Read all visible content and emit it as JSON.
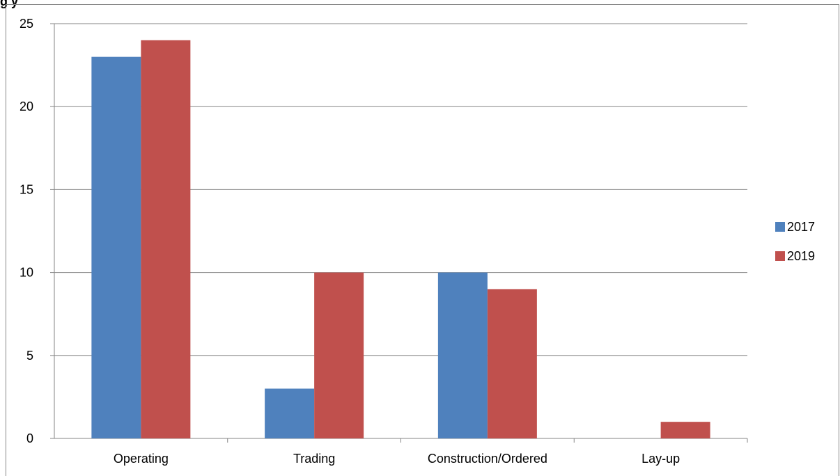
{
  "chart_data": {
    "type": "bar",
    "title": "",
    "title_partial": "g                    y",
    "xlabel": "",
    "ylabel": "",
    "categories": [
      "Operating",
      "Trading",
      "Construction/Ordered",
      "Lay-up"
    ],
    "series": [
      {
        "name": "2017",
        "values": [
          23,
          3,
          10,
          0
        ],
        "color": "#4F81BD"
      },
      {
        "name": "2019",
        "values": [
          24,
          10,
          9,
          1
        ],
        "color": "#C0504D"
      }
    ],
    "yticks": [
      "0",
      "5",
      "10",
      "15",
      "20",
      "25"
    ],
    "ylim": [
      0,
      25
    ],
    "grid": true,
    "legend_position": "right"
  }
}
